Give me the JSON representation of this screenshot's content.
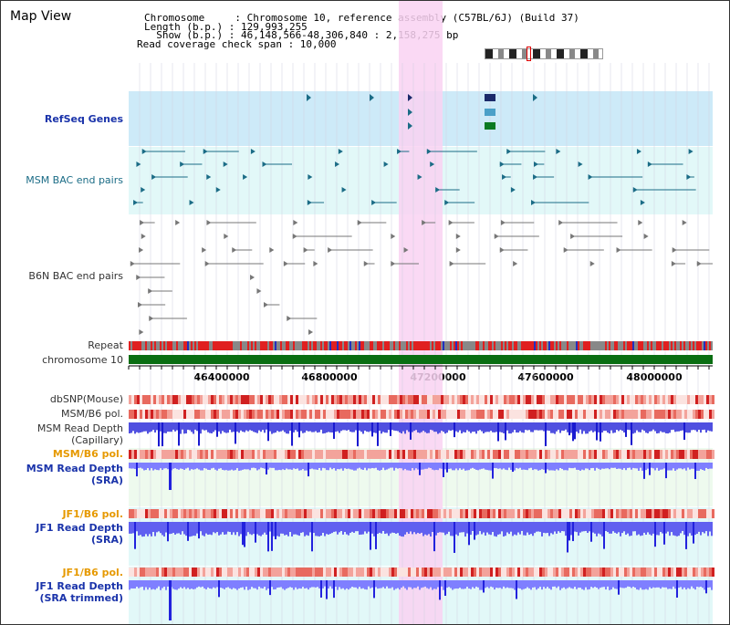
{
  "title": "Map View",
  "header": {
    "line1": "Chromosome     : Chromosome 10, reference assembly (C57BL/6J) (Build 37)",
    "line2": "Length (b.p.) : 129,993,255",
    "line3": "  Show (b.p.) : 46,148,566-48,306,840 : 2,158,275 bp",
    "line4": "Read coverage check span : 10,000"
  },
  "tracks": {
    "refseq": "RefSeq Genes",
    "msm_bac": "MSM BAC end pairs",
    "b6n_bac": "B6N BAC end pairs",
    "repeat": "Repeat",
    "chromosome": "chromosome 10",
    "dbsnp": "dbSNP(Mouse)",
    "msm_pol": "MSM/B6 pol.",
    "msm_depth_cap_1": "MSM Read Depth",
    "msm_depth_cap_2": "(Capillary)",
    "msm_pol_sra": "MSM/B6 pol.",
    "msm_depth_sra_1": "MSM Read Depth",
    "msm_depth_sra_2": "(SRA)",
    "jf1_pol": "JF1/B6 pol.",
    "jf1_depth_1": "JF1 Read Depth",
    "jf1_depth_2": "(SRA)",
    "jf1_pol_trim": "JF1/B6 pol.",
    "jf1_depth_trim_1": "JF1 Read Depth",
    "jf1_depth_trim_2": "(SRA trimmed)"
  },
  "axis": {
    "ticks": [
      "46400000",
      "46800000",
      "47200000",
      "47600000",
      "48000000"
    ]
  },
  "colors": {
    "highlight": "#f9d2f2",
    "refseq_bg": "#cdeaf8",
    "msm_bg": "#e2f8f8",
    "chromosome": "#0a6e12",
    "depth": "#7f7fff",
    "depth_dark": "#2222dd",
    "pol": "#f3a39b"
  }
}
